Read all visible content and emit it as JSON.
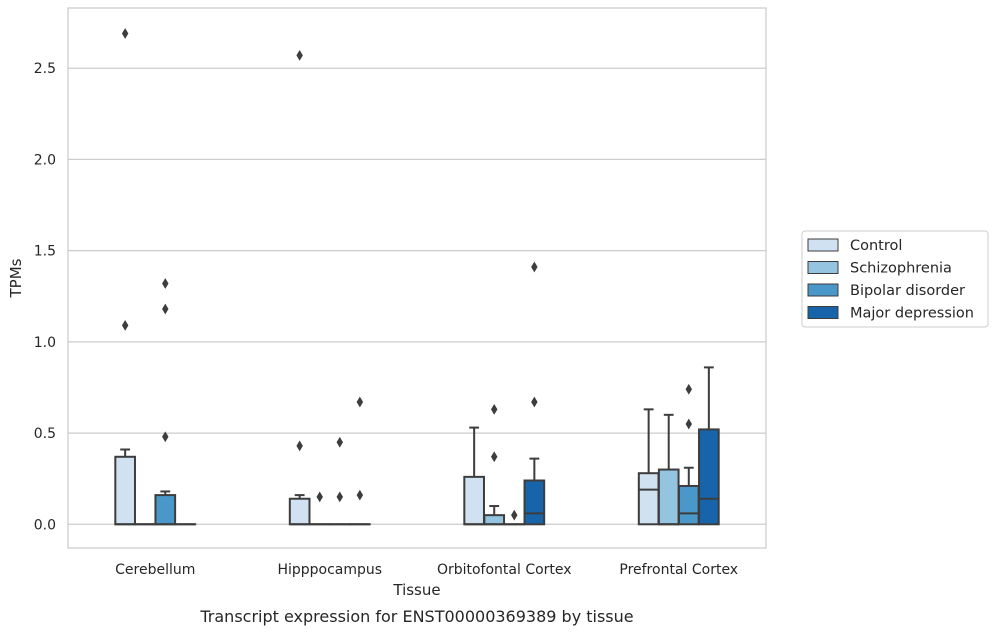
{
  "caption": "Transcript expression for ENST00000369389 by tissue",
  "chart_data": {
    "type": "box",
    "xlabel": "Tissue",
    "ylabel": "TPMs",
    "ylim": [
      -0.13,
      2.83
    ],
    "yticks": [
      0.0,
      0.5,
      1.0,
      1.5,
      2.0,
      2.5
    ],
    "ytick_labels": [
      "0.0",
      "0.5",
      "1.0",
      "1.5",
      "2.0",
      "2.5"
    ],
    "grid": "horizontal",
    "legend_position": "right",
    "categories": [
      "Cerebellum",
      "Hipppocampus",
      "Orbitofontal Cortex",
      "Prefrontal Cortex"
    ],
    "series": [
      {
        "name": "Control",
        "color": "#d0e1f2",
        "boxes": [
          {
            "q1": 0.0,
            "median": 0.0,
            "q3": 0.37,
            "whisker_low": 0.0,
            "whisker_high": 0.41,
            "outliers": [
              1.09,
              2.69
            ]
          },
          {
            "q1": 0.0,
            "median": 0.0,
            "q3": 0.14,
            "whisker_low": 0.0,
            "whisker_high": 0.16,
            "outliers": [
              0.43,
              2.57
            ]
          },
          {
            "q1": 0.0,
            "median": 0.0,
            "q3": 0.26,
            "whisker_low": 0.0,
            "whisker_high": 0.53,
            "outliers": []
          },
          {
            "q1": 0.0,
            "median": 0.19,
            "q3": 0.28,
            "whisker_low": 0.0,
            "whisker_high": 0.63,
            "outliers": []
          }
        ]
      },
      {
        "name": "Schizophrenia",
        "color": "#94c4df",
        "boxes": [
          {
            "q1": 0.0,
            "median": 0.0,
            "q3": 0.0,
            "whisker_low": 0.0,
            "whisker_high": 0.0,
            "outliers": []
          },
          {
            "q1": 0.0,
            "median": 0.0,
            "q3": 0.0,
            "whisker_low": 0.0,
            "whisker_high": 0.0,
            "outliers": [
              0.15
            ]
          },
          {
            "q1": 0.0,
            "median": 0.0,
            "q3": 0.05,
            "whisker_low": 0.0,
            "whisker_high": 0.1,
            "outliers": [
              0.37,
              0.63
            ]
          },
          {
            "q1": 0.0,
            "median": 0.0,
            "q3": 0.3,
            "whisker_low": 0.0,
            "whisker_high": 0.6,
            "outliers": []
          }
        ]
      },
      {
        "name": "Bipolar disorder",
        "color": "#4a98c9",
        "boxes": [
          {
            "q1": 0.0,
            "median": 0.0,
            "q3": 0.16,
            "whisker_low": 0.0,
            "whisker_high": 0.18,
            "outliers": [
              0.48,
              1.18,
              1.32
            ]
          },
          {
            "q1": 0.0,
            "median": 0.0,
            "q3": 0.0,
            "whisker_low": 0.0,
            "whisker_high": 0.0,
            "outliers": [
              0.15,
              0.45
            ]
          },
          {
            "q1": 0.0,
            "median": 0.0,
            "q3": 0.0,
            "whisker_low": 0.0,
            "whisker_high": 0.0,
            "outliers": [
              0.05
            ]
          },
          {
            "q1": 0.0,
            "median": 0.06,
            "q3": 0.21,
            "whisker_low": 0.0,
            "whisker_high": 0.31,
            "outliers": [
              0.55,
              0.74
            ]
          }
        ]
      },
      {
        "name": "Major depression",
        "color": "#1764ab",
        "boxes": [
          {
            "q1": 0.0,
            "median": 0.0,
            "q3": 0.0,
            "whisker_low": 0.0,
            "whisker_high": 0.0,
            "outliers": []
          },
          {
            "q1": 0.0,
            "median": 0.0,
            "q3": 0.0,
            "whisker_low": 0.0,
            "whisker_high": 0.0,
            "outliers": [
              0.16,
              0.67
            ]
          },
          {
            "q1": 0.0,
            "median": 0.06,
            "q3": 0.24,
            "whisker_low": 0.0,
            "whisker_high": 0.36,
            "outliers": [
              0.67,
              1.41
            ]
          },
          {
            "q1": 0.0,
            "median": 0.14,
            "q3": 0.52,
            "whisker_low": 0.0,
            "whisker_high": 0.86,
            "outliers": []
          }
        ]
      }
    ]
  }
}
